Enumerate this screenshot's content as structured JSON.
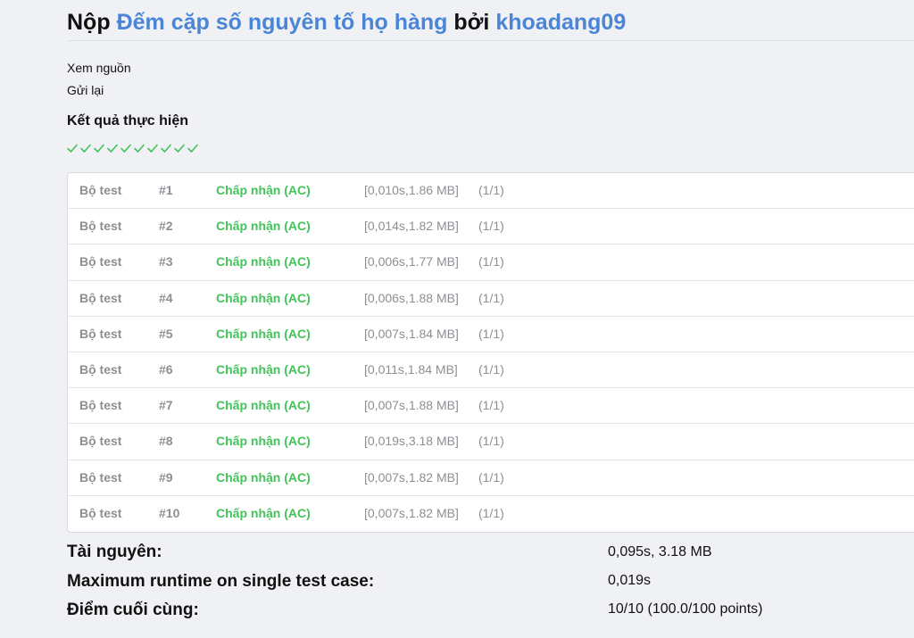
{
  "header": {
    "prefix": "Nộp",
    "problem_name": "Đếm cặp số nguyên tố họ hàng",
    "by": "bởi",
    "user": "khoadang09"
  },
  "actions": {
    "view_source": "Xem nguồn",
    "resubmit": "Gửi lại"
  },
  "results_heading": "Kết quả thực hiện",
  "colors": {
    "accent": "#4a85d8",
    "accepted": "#43c35a",
    "muted": "#8d8f94",
    "background": "#eff1f4"
  },
  "check_icon_count": 10,
  "tests": [
    {
      "label": "Bộ test",
      "num": "#1",
      "status": "Chấp nhận (AC)",
      "time_mem": "[0,010s,1.86 MB]",
      "points": "(1/1)"
    },
    {
      "label": "Bộ test",
      "num": "#2",
      "status": "Chấp nhận (AC)",
      "time_mem": "[0,014s,1.82 MB]",
      "points": "(1/1)"
    },
    {
      "label": "Bộ test",
      "num": "#3",
      "status": "Chấp nhận (AC)",
      "time_mem": "[0,006s,1.77 MB]",
      "points": "(1/1)"
    },
    {
      "label": "Bộ test",
      "num": "#4",
      "status": "Chấp nhận (AC)",
      "time_mem": "[0,006s,1.88 MB]",
      "points": "(1/1)"
    },
    {
      "label": "Bộ test",
      "num": "#5",
      "status": "Chấp nhận (AC)",
      "time_mem": "[0,007s,1.84 MB]",
      "points": "(1/1)"
    },
    {
      "label": "Bộ test",
      "num": "#6",
      "status": "Chấp nhận (AC)",
      "time_mem": "[0,011s,1.84 MB]",
      "points": "(1/1)"
    },
    {
      "label": "Bộ test",
      "num": "#7",
      "status": "Chấp nhận (AC)",
      "time_mem": "[0,007s,1.88 MB]",
      "points": "(1/1)"
    },
    {
      "label": "Bộ test",
      "num": "#8",
      "status": "Chấp nhận (AC)",
      "time_mem": "[0,019s,3.18 MB]",
      "points": "(1/1)"
    },
    {
      "label": "Bộ test",
      "num": "#9",
      "status": "Chấp nhận (AC)",
      "time_mem": "[0,007s,1.82 MB]",
      "points": "(1/1)"
    },
    {
      "label": "Bộ test",
      "num": "#10",
      "status": "Chấp nhận (AC)",
      "time_mem": "[0,007s,1.82 MB]",
      "points": "(1/1)"
    }
  ],
  "summary": {
    "resources_label": "Tài nguyên:",
    "resources_value": "0,095s, 3.18 MB",
    "max_runtime_label": "Maximum runtime on single test case:",
    "max_runtime_value": "0,019s",
    "final_score_label": "Điểm cuối cùng:",
    "final_score_value": "10/10 (100.0/100 points)"
  }
}
